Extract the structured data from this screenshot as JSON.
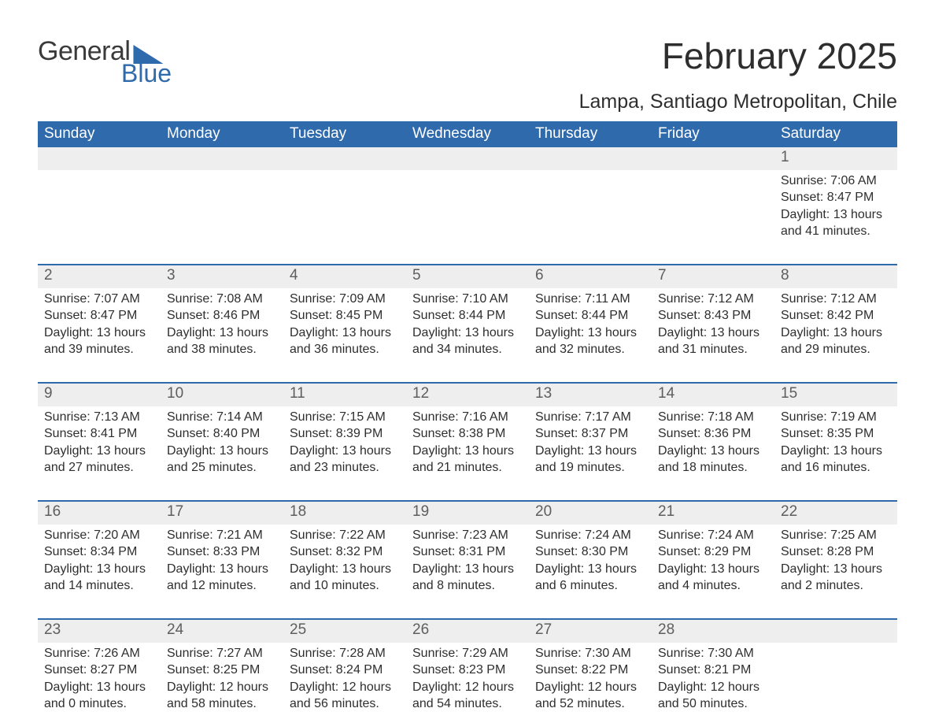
{
  "logo": {
    "word1": "General",
    "word2": "Blue"
  },
  "title": "February 2025",
  "location": "Lampa, Santiago Metropolitan, Chile",
  "colors": {
    "accent": "#2f6aad",
    "header_text": "#ffffff",
    "daynum_bg": "#eeeeee",
    "daynum_text": "#5e5e5e",
    "body_text": "#2e2e2e",
    "background": "#ffffff"
  },
  "weekday_labels": [
    "Sunday",
    "Monday",
    "Tuesday",
    "Wednesday",
    "Thursday",
    "Friday",
    "Saturday"
  ],
  "weeks": [
    [
      null,
      null,
      null,
      null,
      null,
      null,
      {
        "day": "1",
        "sunrise": "Sunrise: 7:06 AM",
        "sunset": "Sunset: 8:47 PM",
        "daylight": "Daylight: 13 hours and 41 minutes."
      }
    ],
    [
      {
        "day": "2",
        "sunrise": "Sunrise: 7:07 AM",
        "sunset": "Sunset: 8:47 PM",
        "daylight": "Daylight: 13 hours and 39 minutes."
      },
      {
        "day": "3",
        "sunrise": "Sunrise: 7:08 AM",
        "sunset": "Sunset: 8:46 PM",
        "daylight": "Daylight: 13 hours and 38 minutes."
      },
      {
        "day": "4",
        "sunrise": "Sunrise: 7:09 AM",
        "sunset": "Sunset: 8:45 PM",
        "daylight": "Daylight: 13 hours and 36 minutes."
      },
      {
        "day": "5",
        "sunrise": "Sunrise: 7:10 AM",
        "sunset": "Sunset: 8:44 PM",
        "daylight": "Daylight: 13 hours and 34 minutes."
      },
      {
        "day": "6",
        "sunrise": "Sunrise: 7:11 AM",
        "sunset": "Sunset: 8:44 PM",
        "daylight": "Daylight: 13 hours and 32 minutes."
      },
      {
        "day": "7",
        "sunrise": "Sunrise: 7:12 AM",
        "sunset": "Sunset: 8:43 PM",
        "daylight": "Daylight: 13 hours and 31 minutes."
      },
      {
        "day": "8",
        "sunrise": "Sunrise: 7:12 AM",
        "sunset": "Sunset: 8:42 PM",
        "daylight": "Daylight: 13 hours and 29 minutes."
      }
    ],
    [
      {
        "day": "9",
        "sunrise": "Sunrise: 7:13 AM",
        "sunset": "Sunset: 8:41 PM",
        "daylight": "Daylight: 13 hours and 27 minutes."
      },
      {
        "day": "10",
        "sunrise": "Sunrise: 7:14 AM",
        "sunset": "Sunset: 8:40 PM",
        "daylight": "Daylight: 13 hours and 25 minutes."
      },
      {
        "day": "11",
        "sunrise": "Sunrise: 7:15 AM",
        "sunset": "Sunset: 8:39 PM",
        "daylight": "Daylight: 13 hours and 23 minutes."
      },
      {
        "day": "12",
        "sunrise": "Sunrise: 7:16 AM",
        "sunset": "Sunset: 8:38 PM",
        "daylight": "Daylight: 13 hours and 21 minutes."
      },
      {
        "day": "13",
        "sunrise": "Sunrise: 7:17 AM",
        "sunset": "Sunset: 8:37 PM",
        "daylight": "Daylight: 13 hours and 19 minutes."
      },
      {
        "day": "14",
        "sunrise": "Sunrise: 7:18 AM",
        "sunset": "Sunset: 8:36 PM",
        "daylight": "Daylight: 13 hours and 18 minutes."
      },
      {
        "day": "15",
        "sunrise": "Sunrise: 7:19 AM",
        "sunset": "Sunset: 8:35 PM",
        "daylight": "Daylight: 13 hours and 16 minutes."
      }
    ],
    [
      {
        "day": "16",
        "sunrise": "Sunrise: 7:20 AM",
        "sunset": "Sunset: 8:34 PM",
        "daylight": "Daylight: 13 hours and 14 minutes."
      },
      {
        "day": "17",
        "sunrise": "Sunrise: 7:21 AM",
        "sunset": "Sunset: 8:33 PM",
        "daylight": "Daylight: 13 hours and 12 minutes."
      },
      {
        "day": "18",
        "sunrise": "Sunrise: 7:22 AM",
        "sunset": "Sunset: 8:32 PM",
        "daylight": "Daylight: 13 hours and 10 minutes."
      },
      {
        "day": "19",
        "sunrise": "Sunrise: 7:23 AM",
        "sunset": "Sunset: 8:31 PM",
        "daylight": "Daylight: 13 hours and 8 minutes."
      },
      {
        "day": "20",
        "sunrise": "Sunrise: 7:24 AM",
        "sunset": "Sunset: 8:30 PM",
        "daylight": "Daylight: 13 hours and 6 minutes."
      },
      {
        "day": "21",
        "sunrise": "Sunrise: 7:24 AM",
        "sunset": "Sunset: 8:29 PM",
        "daylight": "Daylight: 13 hours and 4 minutes."
      },
      {
        "day": "22",
        "sunrise": "Sunrise: 7:25 AM",
        "sunset": "Sunset: 8:28 PM",
        "daylight": "Daylight: 13 hours and 2 minutes."
      }
    ],
    [
      {
        "day": "23",
        "sunrise": "Sunrise: 7:26 AM",
        "sunset": "Sunset: 8:27 PM",
        "daylight": "Daylight: 13 hours and 0 minutes."
      },
      {
        "day": "24",
        "sunrise": "Sunrise: 7:27 AM",
        "sunset": "Sunset: 8:25 PM",
        "daylight": "Daylight: 12 hours and 58 minutes."
      },
      {
        "day": "25",
        "sunrise": "Sunrise: 7:28 AM",
        "sunset": "Sunset: 8:24 PM",
        "daylight": "Daylight: 12 hours and 56 minutes."
      },
      {
        "day": "26",
        "sunrise": "Sunrise: 7:29 AM",
        "sunset": "Sunset: 8:23 PM",
        "daylight": "Daylight: 12 hours and 54 minutes."
      },
      {
        "day": "27",
        "sunrise": "Sunrise: 7:30 AM",
        "sunset": "Sunset: 8:22 PM",
        "daylight": "Daylight: 12 hours and 52 minutes."
      },
      {
        "day": "28",
        "sunrise": "Sunrise: 7:30 AM",
        "sunset": "Sunset: 8:21 PM",
        "daylight": "Daylight: 12 hours and 50 minutes."
      },
      null
    ]
  ]
}
